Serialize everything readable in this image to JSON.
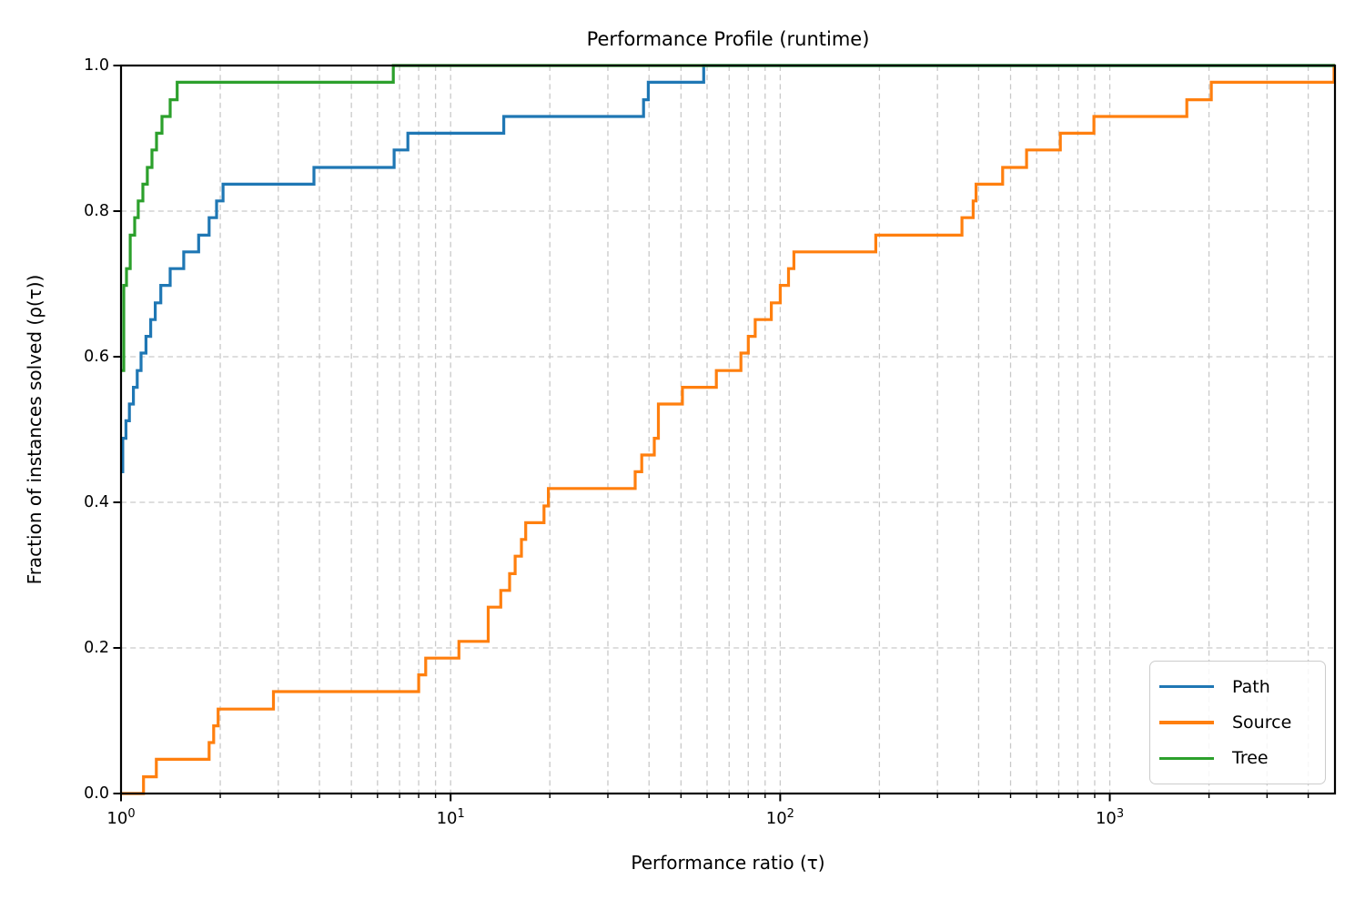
{
  "chart_data": {
    "type": "line",
    "subtype": "step-post-performance-profile",
    "title": "Performance Profile (runtime)",
    "xlabel": "Performance ratio (τ)",
    "ylabel": "Fraction of instances solved (ρ(τ))",
    "xscale": "log",
    "xlim": [
      1,
      4822
    ],
    "ylim": [
      0.0,
      1.0
    ],
    "grid": true,
    "grid_style": "dashed",
    "grid_color": "#c9c9c9",
    "legend_position": "lower right",
    "y_ticks": [
      {
        "value": 0.0,
        "label": "0.0"
      },
      {
        "value": 0.2,
        "label": "0.2"
      },
      {
        "value": 0.4,
        "label": "0.4"
      },
      {
        "value": 0.6,
        "label": "0.6"
      },
      {
        "value": 0.8,
        "label": "0.8"
      },
      {
        "value": 1.0,
        "label": "1.0"
      }
    ],
    "y_gridlines": [
      0.2,
      0.4,
      0.6,
      0.8
    ],
    "x_major_ticks": [
      {
        "value": 1,
        "base": "10",
        "exp": "0"
      },
      {
        "value": 10,
        "base": "10",
        "exp": "1"
      },
      {
        "value": 100,
        "base": "10",
        "exp": "2"
      },
      {
        "value": 1000,
        "base": "10",
        "exp": "3"
      }
    ],
    "series": [
      {
        "name": "Path",
        "color": "#1f77b4",
        "points": [
          [
            1,
            0.442
          ],
          [
            1.012,
            0.488
          ],
          [
            1.035,
            0.512
          ],
          [
            1.06,
            0.535
          ],
          [
            1.09,
            0.558
          ],
          [
            1.12,
            0.581
          ],
          [
            1.15,
            0.605
          ],
          [
            1.19,
            0.628
          ],
          [
            1.23,
            0.651
          ],
          [
            1.27,
            0.674
          ],
          [
            1.32,
            0.698
          ],
          [
            1.41,
            0.721
          ],
          [
            1.55,
            0.744
          ],
          [
            1.72,
            0.767
          ],
          [
            1.85,
            0.791
          ],
          [
            1.95,
            0.814
          ],
          [
            2.04,
            0.837
          ],
          [
            3.85,
            0.86
          ],
          [
            6.74,
            0.884
          ],
          [
            7.42,
            0.907
          ],
          [
            14.5,
            0.93
          ],
          [
            38.5,
            0.953
          ],
          [
            39.8,
            0.977
          ],
          [
            58.6,
            1.0
          ]
        ]
      },
      {
        "name": "Source",
        "color": "#ff7f0e",
        "points": [
          [
            1,
            0.0
          ],
          [
            1.17,
            0.023
          ],
          [
            1.28,
            0.047
          ],
          [
            1.85,
            0.07
          ],
          [
            1.91,
            0.093
          ],
          [
            1.97,
            0.116
          ],
          [
            2.9,
            0.14
          ],
          [
            8.0,
            0.163
          ],
          [
            8.4,
            0.186
          ],
          [
            10.6,
            0.209
          ],
          [
            13.0,
            0.256
          ],
          [
            14.2,
            0.279
          ],
          [
            15.1,
            0.302
          ],
          [
            15.7,
            0.326
          ],
          [
            16.4,
            0.349
          ],
          [
            16.9,
            0.372
          ],
          [
            19.2,
            0.395
          ],
          [
            19.8,
            0.419
          ],
          [
            36.3,
            0.442
          ],
          [
            38.0,
            0.465
          ],
          [
            41.5,
            0.488
          ],
          [
            42.7,
            0.535
          ],
          [
            50.5,
            0.558
          ],
          [
            64,
            0.581
          ],
          [
            76,
            0.605
          ],
          [
            80,
            0.628
          ],
          [
            84,
            0.651
          ],
          [
            94,
            0.674
          ],
          [
            100,
            0.698
          ],
          [
            106,
            0.721
          ],
          [
            110,
            0.744
          ],
          [
            195,
            0.767
          ],
          [
            356,
            0.791
          ],
          [
            385,
            0.814
          ],
          [
            393,
            0.837
          ],
          [
            473,
            0.86
          ],
          [
            559,
            0.884
          ],
          [
            708,
            0.907
          ],
          [
            895,
            0.93
          ],
          [
            1713,
            0.953
          ],
          [
            2033,
            0.977
          ],
          [
            4790,
            1.0
          ]
        ]
      },
      {
        "name": "Tree",
        "color": "#2ca02c",
        "points": [
          [
            1,
            0.581
          ],
          [
            1.019,
            0.698
          ],
          [
            1.039,
            0.721
          ],
          [
            1.066,
            0.767
          ],
          [
            1.1,
            0.791
          ],
          [
            1.128,
            0.814
          ],
          [
            1.165,
            0.837
          ],
          [
            1.202,
            0.86
          ],
          [
            1.241,
            0.884
          ],
          [
            1.281,
            0.907
          ],
          [
            1.331,
            0.93
          ],
          [
            1.41,
            0.953
          ],
          [
            1.48,
            0.977
          ],
          [
            6.7,
            1.0
          ]
        ]
      }
    ]
  }
}
